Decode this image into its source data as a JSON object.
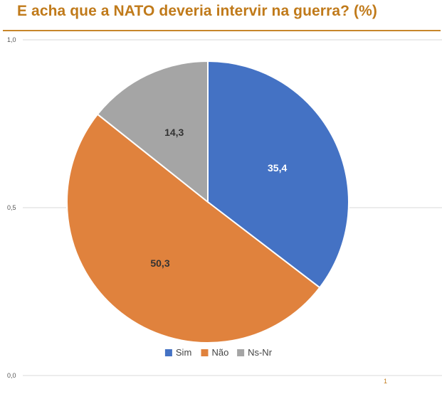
{
  "chart_data": {
    "type": "pie",
    "title": "E acha que a NATO deveria intervir na guerra? (%)",
    "categories": [
      "Sim",
      "Não",
      "Ns-Nr"
    ],
    "values": [
      35.4,
      50.3,
      14.3
    ],
    "data_labels": [
      "35,4",
      "50,3",
      "14,3"
    ],
    "colors": [
      "#4472c4",
      "#e0823d",
      "#a5a5a5"
    ],
    "label_colors": [
      "#ffffff",
      "#333333",
      "#333333"
    ],
    "y_ticks": [
      "1,0",
      "0,5",
      "0,0"
    ],
    "x_ticks": [
      "1"
    ],
    "grid": true,
    "legend_position": "bottom"
  }
}
